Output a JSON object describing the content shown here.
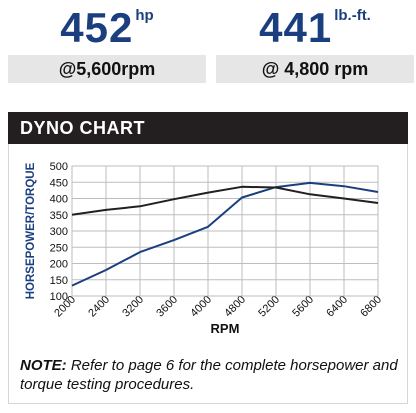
{
  "stats": {
    "horsepower": {
      "value": "452",
      "unit": "hp",
      "rpm": "@5,600rpm"
    },
    "torque": {
      "value": "441",
      "unit": "lb.-ft.",
      "rpm": "@ 4,800 rpm"
    }
  },
  "panel": {
    "title": "DYNO CHART"
  },
  "note": {
    "label": "NOTE:",
    "text": " Refer to page 6 for the complete horsepower and torque testing procedures."
  },
  "colors": {
    "horsepower": "#1b3f7e",
    "torque": "#231f20",
    "grid": "#bdbdbd"
  },
  "chart_data": {
    "type": "line",
    "xlabel": "RPM",
    "ylabel": "HORSEPOWER/TORQUE",
    "x": [
      2000,
      2400,
      3200,
      3600,
      4000,
      4800,
      5200,
      5600,
      6400,
      6800
    ],
    "xlim": [
      2000,
      6800
    ],
    "ylim": [
      100,
      500
    ],
    "yticks": [
      100,
      150,
      200,
      250,
      300,
      350,
      400,
      450,
      500
    ],
    "grid": true,
    "series": [
      {
        "key": "horsepower",
        "values": [
          132,
          180,
          235,
          272,
          313,
          403,
          435,
          448,
          438,
          420
        ]
      },
      {
        "key": "torque",
        "values": [
          350,
          365,
          376,
          398,
          418,
          436,
          434,
          413,
          400,
          386
        ]
      }
    ]
  }
}
